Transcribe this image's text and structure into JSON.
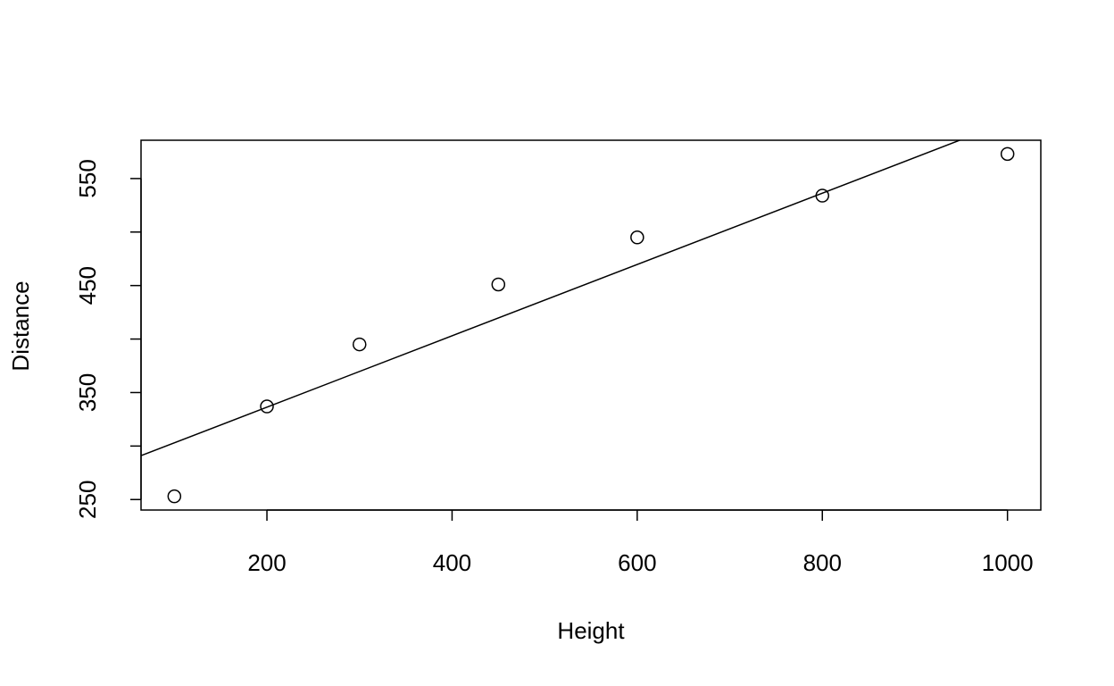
{
  "chart_data": {
    "type": "scatter",
    "xlabel": "Height",
    "ylabel": "Distance",
    "x": [
      100,
      200,
      300,
      450,
      600,
      800,
      1000
    ],
    "values": [
      253,
      337,
      395,
      451,
      495,
      534,
      573
    ],
    "color": "#000000",
    "trend_line": {
      "intercept": 269.7,
      "slope": 0.3333
    },
    "xlim": [
      64,
      1036
    ],
    "ylim": [
      240.2,
      585.8
    ],
    "xticks": [
      200,
      400,
      600,
      800,
      1000
    ],
    "yticks": [
      250,
      {
        "value": 300,
        "label": null
      },
      350,
      {
        "value": 400,
        "label": null
      },
      450,
      {
        "value": 500,
        "label": null
      },
      550
    ]
  }
}
